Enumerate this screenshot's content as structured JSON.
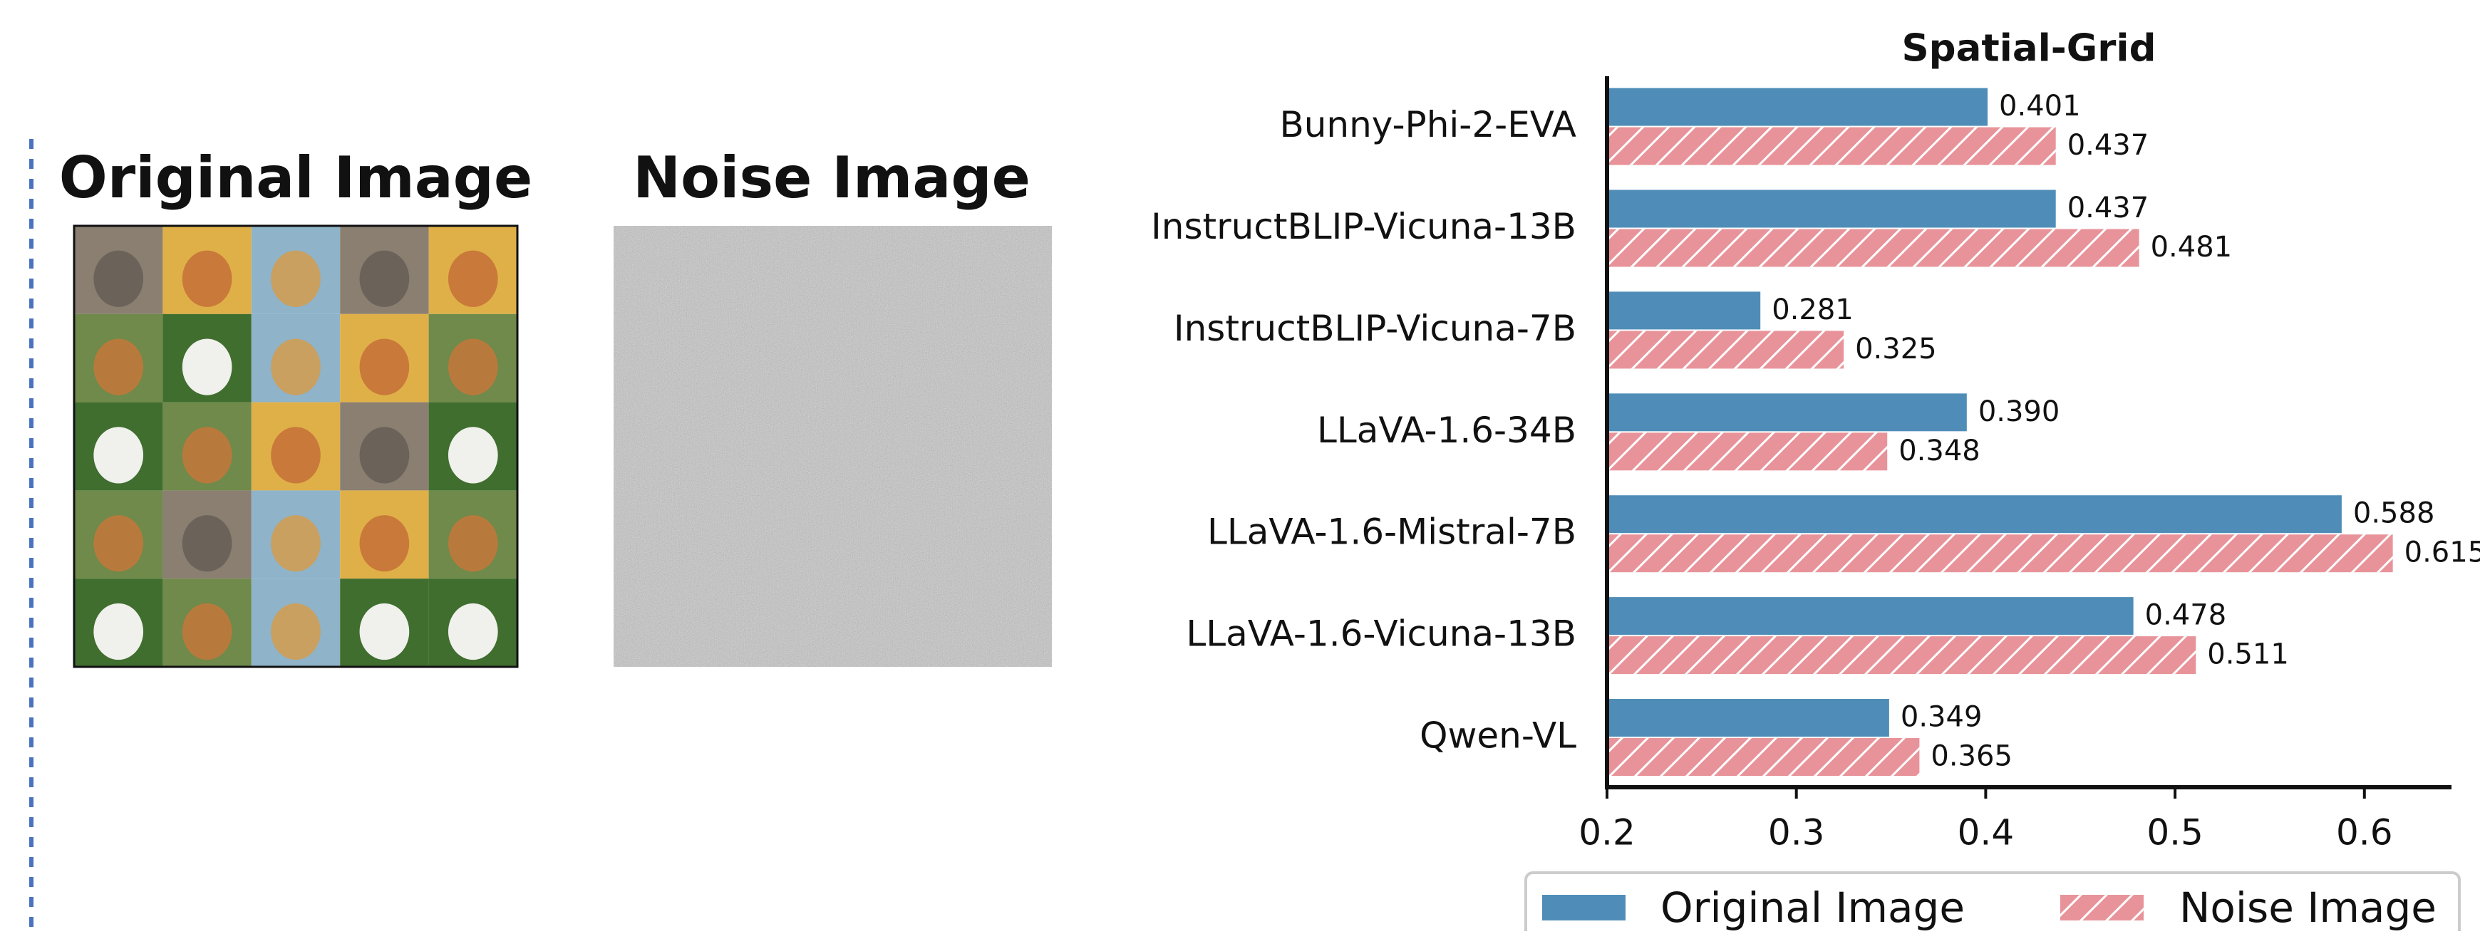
{
  "panels": {
    "original_title": "Original Image",
    "noise_title": "Noise Image"
  },
  "chart_data": {
    "type": "barh",
    "title": "Spatial-Grid",
    "categories": [
      "Bunny-Phi-2-EVA",
      "InstructBLIP-Vicuna-13B",
      "InstructBLIP-Vicuna-7B",
      "LLaVA-1.6-34B",
      "LLaVA-1.6-Mistral-7B",
      "LLaVA-1.6-Vicuna-13B",
      "Qwen-VL"
    ],
    "series": [
      {
        "name": "Original Image",
        "color": "#4f8db8",
        "hatch": false,
        "values": [
          0.401,
          0.437,
          0.281,
          0.39,
          0.588,
          0.478,
          0.349
        ],
        "value_labels": [
          "0.401",
          "0.437",
          "0.281",
          "0.390",
          "0.588",
          "0.478",
          "0.349"
        ]
      },
      {
        "name": "Noise Image",
        "color": "#e8939a",
        "hatch": true,
        "values": [
          0.437,
          0.481,
          0.325,
          0.348,
          0.615,
          0.511,
          0.365
        ],
        "value_labels": [
          "0.437",
          "0.481",
          "0.325",
          "0.348",
          "0.615",
          "0.511",
          "0.365"
        ]
      }
    ],
    "xlim": [
      0.2,
      0.646
    ],
    "xticks": [
      0.2,
      0.3,
      0.4,
      0.5,
      0.6
    ],
    "legend": "bottom"
  }
}
